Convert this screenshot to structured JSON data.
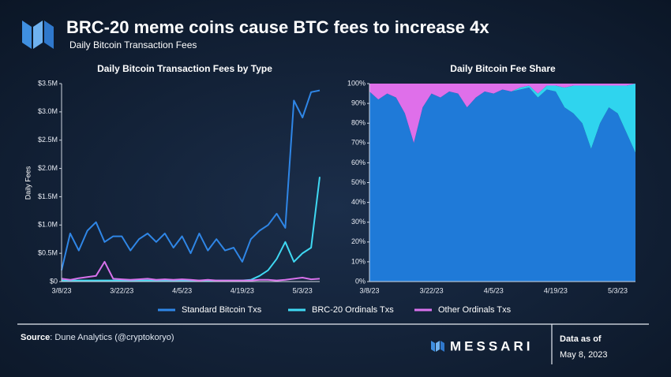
{
  "header": {
    "title": "BRC-20 meme coins cause BTC fees to increase 4x",
    "subtitle": "Daily Bitcoin Transaction Fees"
  },
  "chart_data": [
    {
      "type": "line",
      "title": "Daily Bitcoin Transaction Fees by Type",
      "y_label": "Daily Fees",
      "categories": [
        "3/8/23",
        null,
        null,
        null,
        null,
        null,
        null,
        "3/22/23",
        null,
        null,
        null,
        null,
        null,
        null,
        "4/5/23",
        null,
        null,
        null,
        null,
        null,
        null,
        "4/19/23",
        null,
        null,
        null,
        null,
        null,
        null,
        "5/3/23",
        null,
        null
      ],
      "series": [
        {
          "name": "Standard Bitcoin Txs",
          "color": "#2f86e6",
          "values": [
            0.2,
            0.85,
            0.55,
            0.9,
            1.05,
            0.7,
            0.8,
            0.8,
            0.55,
            0.75,
            0.85,
            0.7,
            0.85,
            0.6,
            0.8,
            0.5,
            0.85,
            0.55,
            0.75,
            0.55,
            0.6,
            0.35,
            0.75,
            0.9,
            1.0,
            1.2,
            0.95,
            3.2,
            2.9,
            3.35,
            3.38
          ]
        },
        {
          "name": "BRC-20 Ordinals Txs",
          "color": "#3fd8f2",
          "values": [
            0.02,
            0.02,
            0.02,
            0.02,
            0.02,
            0.02,
            0.02,
            0.02,
            0.02,
            0.02,
            0.02,
            0.02,
            0.02,
            0.02,
            0.02,
            0.02,
            0.02,
            0.02,
            0.02,
            0.02,
            0.02,
            0.02,
            0.03,
            0.1,
            0.2,
            0.4,
            0.7,
            0.35,
            0.5,
            0.6,
            1.85
          ]
        },
        {
          "name": "Other Ordinals Txs",
          "color": "#d872ec",
          "values": [
            0.05,
            0.03,
            0.06,
            0.08,
            0.1,
            0.35,
            0.05,
            0.04,
            0.03,
            0.04,
            0.05,
            0.03,
            0.04,
            0.03,
            0.04,
            0.03,
            0.02,
            0.03,
            0.02,
            0.02,
            0.02,
            0.02,
            0.02,
            0.03,
            0.03,
            0.02,
            0.03,
            0.05,
            0.07,
            0.04,
            0.05
          ]
        }
      ],
      "ylim": [
        0,
        3.5
      ],
      "yticks": [
        {
          "value": 0,
          "label": "$0"
        },
        {
          "value": 0.5,
          "label": "$0.5M"
        },
        {
          "value": 1,
          "label": "$1.0M"
        },
        {
          "value": 1.5,
          "label": "$1.5M"
        },
        {
          "value": 2,
          "label": "$2.0M"
        },
        {
          "value": 2.5,
          "label": "$2.5M"
        },
        {
          "value": 3,
          "label": "$3.0M"
        },
        {
          "value": 3.5,
          "label": "$3.5M"
        }
      ],
      "grid": false
    },
    {
      "type": "area",
      "stacked": true,
      "title": "Daily Bitcoin Fee Share",
      "categories": [
        "3/8/23",
        null,
        null,
        null,
        null,
        null,
        null,
        "3/22/23",
        null,
        null,
        null,
        null,
        null,
        null,
        "4/5/23",
        null,
        null,
        null,
        null,
        null,
        null,
        "4/19/23",
        null,
        null,
        null,
        null,
        null,
        null,
        "5/3/23",
        null,
        null
      ],
      "series": [
        {
          "name": "Standard Bitcoin Txs",
          "color": "#1f7ad8",
          "values": [
            96,
            92,
            95,
            93,
            85,
            70,
            88,
            95,
            93,
            96,
            95,
            88,
            93,
            96,
            95,
            97,
            96,
            97,
            98,
            93,
            97,
            96,
            88,
            85,
            80,
            67,
            80,
            88,
            85,
            75,
            65
          ]
        },
        {
          "name": "BRC-20 Ordinals Txs",
          "color": "#2fd4ee",
          "values": [
            0,
            0,
            0,
            0,
            0,
            0,
            0,
            0,
            0,
            0,
            0,
            0,
            0,
            0,
            0,
            0,
            0,
            1,
            1,
            2,
            2,
            3,
            10,
            14,
            19,
            32,
            19,
            11,
            14,
            24,
            35
          ]
        },
        {
          "name": "Other Ordinals Txs",
          "color": "#df6fea",
          "values": [
            4,
            8,
            5,
            7,
            15,
            30,
            12,
            5,
            7,
            4,
            5,
            12,
            7,
            4,
            5,
            3,
            4,
            2,
            1,
            5,
            1,
            1,
            2,
            1,
            1,
            1,
            1,
            1,
            1,
            1,
            0
          ]
        }
      ],
      "ylim": [
        0,
        100
      ],
      "yticks": [
        {
          "value": 0,
          "label": "0%"
        },
        {
          "value": 10,
          "label": "10%"
        },
        {
          "value": 20,
          "label": "20%"
        },
        {
          "value": 30,
          "label": "30%"
        },
        {
          "value": 40,
          "label": "40%"
        },
        {
          "value": 50,
          "label": "50%"
        },
        {
          "value": 60,
          "label": "60%"
        },
        {
          "value": 70,
          "label": "70%"
        },
        {
          "value": 80,
          "label": "80%"
        },
        {
          "value": 90,
          "label": "90%"
        },
        {
          "value": 100,
          "label": "100%"
        }
      ],
      "grid": false
    }
  ],
  "footer": {
    "source_label": "Source",
    "source": ": Dune Analytics (@cryptokoryo)",
    "brand": "MESSARI",
    "data_as_of": "Data as of",
    "date": "May 8, 2023"
  }
}
